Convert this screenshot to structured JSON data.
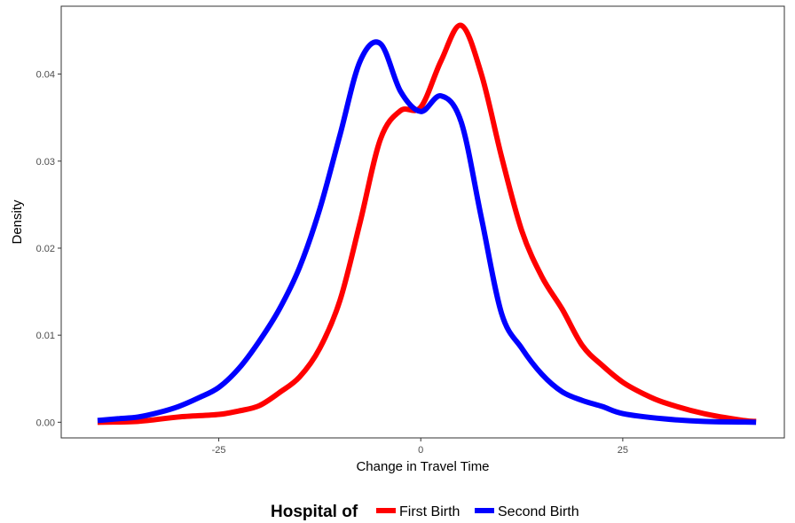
{
  "chart_data": {
    "type": "line",
    "title": "",
    "xlabel": "Change in Travel Time",
    "ylabel": "Density",
    "xlim": [
      -44.5,
      45
    ],
    "ylim": [
      -0.0018,
      0.0478
    ],
    "x_ticks": [
      -25,
      0,
      25
    ],
    "x_tick_labels": [
      "-25",
      "0",
      "25"
    ],
    "y_ticks": [
      0.0,
      0.01,
      0.02,
      0.03,
      0.04
    ],
    "y_tick_labels": [
      "0.00",
      "0.01",
      "0.02",
      "0.03",
      "0.04"
    ],
    "grid": false,
    "legend": {
      "position": "bottom",
      "title": "Hospital of",
      "entries": [
        "First Birth",
        "Second Birth"
      ]
    },
    "series": [
      {
        "name": "First Birth",
        "color": "#ff0000",
        "x": [
          -40,
          -35,
          -30,
          -25,
          -22.5,
          -20,
          -17.5,
          -15,
          -12.5,
          -10,
          -7.5,
          -5,
          -2.5,
          0,
          2.5,
          5,
          7.5,
          10,
          12.5,
          15,
          17.5,
          20,
          22.5,
          25,
          27.5,
          30,
          35,
          40,
          41.5
        ],
        "y": [
          0.0,
          0.0001,
          0.0006,
          0.0009,
          0.0013,
          0.0019,
          0.0034,
          0.0052,
          0.0085,
          0.014,
          0.023,
          0.0325,
          0.0358,
          0.0362,
          0.0415,
          0.0456,
          0.04,
          0.0305,
          0.022,
          0.0167,
          0.013,
          0.0088,
          0.0065,
          0.0046,
          0.0033,
          0.0023,
          0.001,
          0.0002,
          0.0001
        ]
      },
      {
        "name": "Second Birth",
        "color": "#0000ff",
        "x": [
          -40,
          -37.5,
          -35,
          -32.5,
          -30,
          -27.5,
          -25,
          -22.5,
          -20,
          -17.5,
          -15,
          -12.5,
          -10,
          -7.5,
          -5,
          -2.5,
          0,
          2.5,
          5,
          7.5,
          10,
          12.5,
          15,
          17.5,
          20,
          22.5,
          25,
          30,
          35,
          41.5
        ],
        "y": [
          0.0002,
          0.0004,
          0.0006,
          0.0011,
          0.0018,
          0.0028,
          0.004,
          0.0062,
          0.0093,
          0.013,
          0.0178,
          0.0245,
          0.033,
          0.0415,
          0.0435,
          0.038,
          0.0357,
          0.0375,
          0.0345,
          0.0235,
          0.0125,
          0.0085,
          0.0055,
          0.0035,
          0.0025,
          0.0018,
          0.001,
          0.0004,
          0.0001,
          0.0
        ]
      }
    ]
  }
}
